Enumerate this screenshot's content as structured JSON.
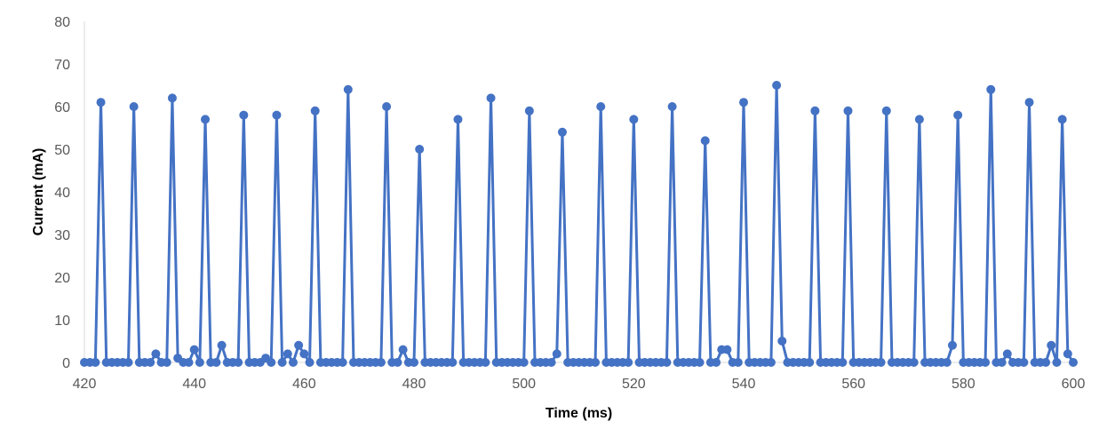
{
  "chart_data": {
    "type": "line",
    "xlabel": "Time (ms)",
    "ylabel": "Current (mA)",
    "xlim": [
      420,
      600
    ],
    "ylim": [
      0,
      80
    ],
    "x_ticks": [
      420,
      440,
      460,
      480,
      500,
      520,
      540,
      560,
      580,
      600
    ],
    "y_ticks": [
      0,
      10,
      20,
      30,
      40,
      50,
      60,
      70,
      80
    ],
    "grid": false,
    "legend": "none",
    "series_color": "#4472C4",
    "series": [
      {
        "x": [
          420,
          421,
          422,
          423,
          424,
          425,
          426,
          427,
          428,
          429,
          430,
          431,
          432,
          433,
          434,
          435,
          436,
          437,
          438,
          439,
          440,
          441,
          442,
          443,
          444,
          445,
          446,
          447,
          448,
          449,
          450,
          451,
          452,
          453,
          454,
          455,
          456,
          457,
          458,
          459,
          460,
          461,
          462,
          463,
          464,
          465,
          466,
          467,
          468,
          469,
          470,
          471,
          472,
          473,
          474,
          475,
          476,
          477,
          478,
          479,
          480,
          481,
          482,
          483,
          484,
          485,
          486,
          487,
          488,
          489,
          490,
          491,
          492,
          493,
          494,
          495,
          496,
          497,
          498,
          499,
          500,
          501,
          502,
          503,
          504,
          505,
          506,
          507,
          508,
          509,
          510,
          511,
          512,
          513,
          514,
          515,
          516,
          517,
          518,
          519,
          520,
          521,
          522,
          523,
          524,
          525,
          526,
          527,
          528,
          529,
          530,
          531,
          532,
          533,
          534,
          535,
          536,
          537,
          538,
          539,
          540,
          541,
          542,
          543,
          544,
          545,
          546,
          547,
          548,
          549,
          550,
          551,
          552,
          553,
          554,
          555,
          556,
          557,
          558,
          559,
          560,
          561,
          562,
          563,
          564,
          565,
          566,
          567,
          568,
          569,
          570,
          571,
          572,
          573,
          574,
          575,
          576,
          577,
          578,
          579,
          580,
          581,
          582,
          583,
          584,
          585,
          586,
          587,
          588,
          589,
          590,
          591,
          592,
          593,
          594,
          595,
          596,
          597,
          598,
          599,
          600
        ],
        "y": [
          0,
          0,
          0,
          61,
          0,
          0,
          0,
          0,
          0,
          60,
          0,
          0,
          0,
          2,
          0,
          0,
          62,
          1,
          0,
          0,
          3,
          0,
          57,
          0,
          0,
          4,
          0,
          0,
          0,
          58,
          0,
          0,
          0,
          1,
          0,
          58,
          0,
          2,
          0,
          4,
          2,
          0,
          59,
          0,
          0,
          0,
          0,
          0,
          64,
          0,
          0,
          0,
          0,
          0,
          0,
          60,
          0,
          0,
          3,
          0,
          0,
          50,
          0,
          0,
          0,
          0,
          0,
          0,
          57,
          0,
          0,
          0,
          0,
          0,
          62,
          0,
          0,
          0,
          0,
          0,
          0,
          59,
          0,
          0,
          0,
          0,
          2,
          54,
          0,
          0,
          0,
          0,
          0,
          0,
          60,
          0,
          0,
          0,
          0,
          0,
          57,
          0,
          0,
          0,
          0,
          0,
          0,
          60,
          0,
          0,
          0,
          0,
          0,
          52,
          0,
          0,
          3,
          3,
          0,
          0,
          61,
          0,
          0,
          0,
          0,
          0,
          65,
          5,
          0,
          0,
          0,
          0,
          0,
          59,
          0,
          0,
          0,
          0,
          0,
          59,
          0,
          0,
          0,
          0,
          0,
          0,
          59,
          0,
          0,
          0,
          0,
          0,
          57,
          0,
          0,
          0,
          0,
          0,
          4,
          58,
          0,
          0,
          0,
          0,
          0,
          64,
          0,
          0,
          2,
          0,
          0,
          0,
          61,
          0,
          0,
          0,
          4,
          0,
          57,
          2,
          0
        ]
      }
    ]
  }
}
